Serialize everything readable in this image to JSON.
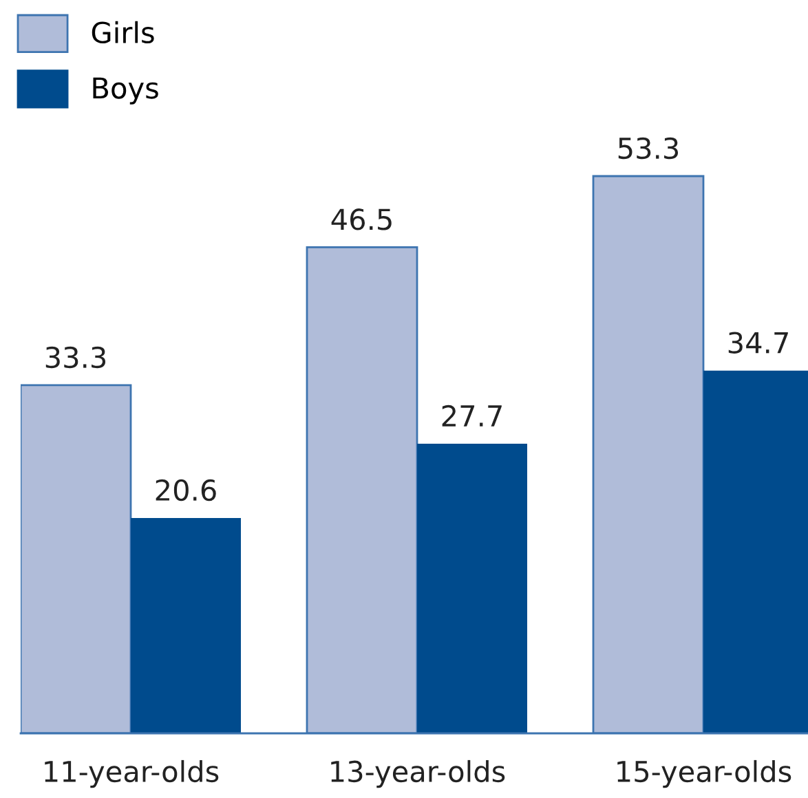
{
  "chart_data": {
    "type": "bar",
    "categories": [
      "11-year-olds",
      "13-year-olds",
      "15-year-olds"
    ],
    "series": [
      {
        "name": "Girls",
        "color": "#b0bcd9",
        "values": [
          33.3,
          46.5,
          53.3
        ]
      },
      {
        "name": "Boys",
        "color": "#004b8d",
        "values": [
          20.6,
          27.7,
          34.7
        ]
      }
    ],
    "data_labels": true,
    "legend": "top left",
    "grid": false
  }
}
